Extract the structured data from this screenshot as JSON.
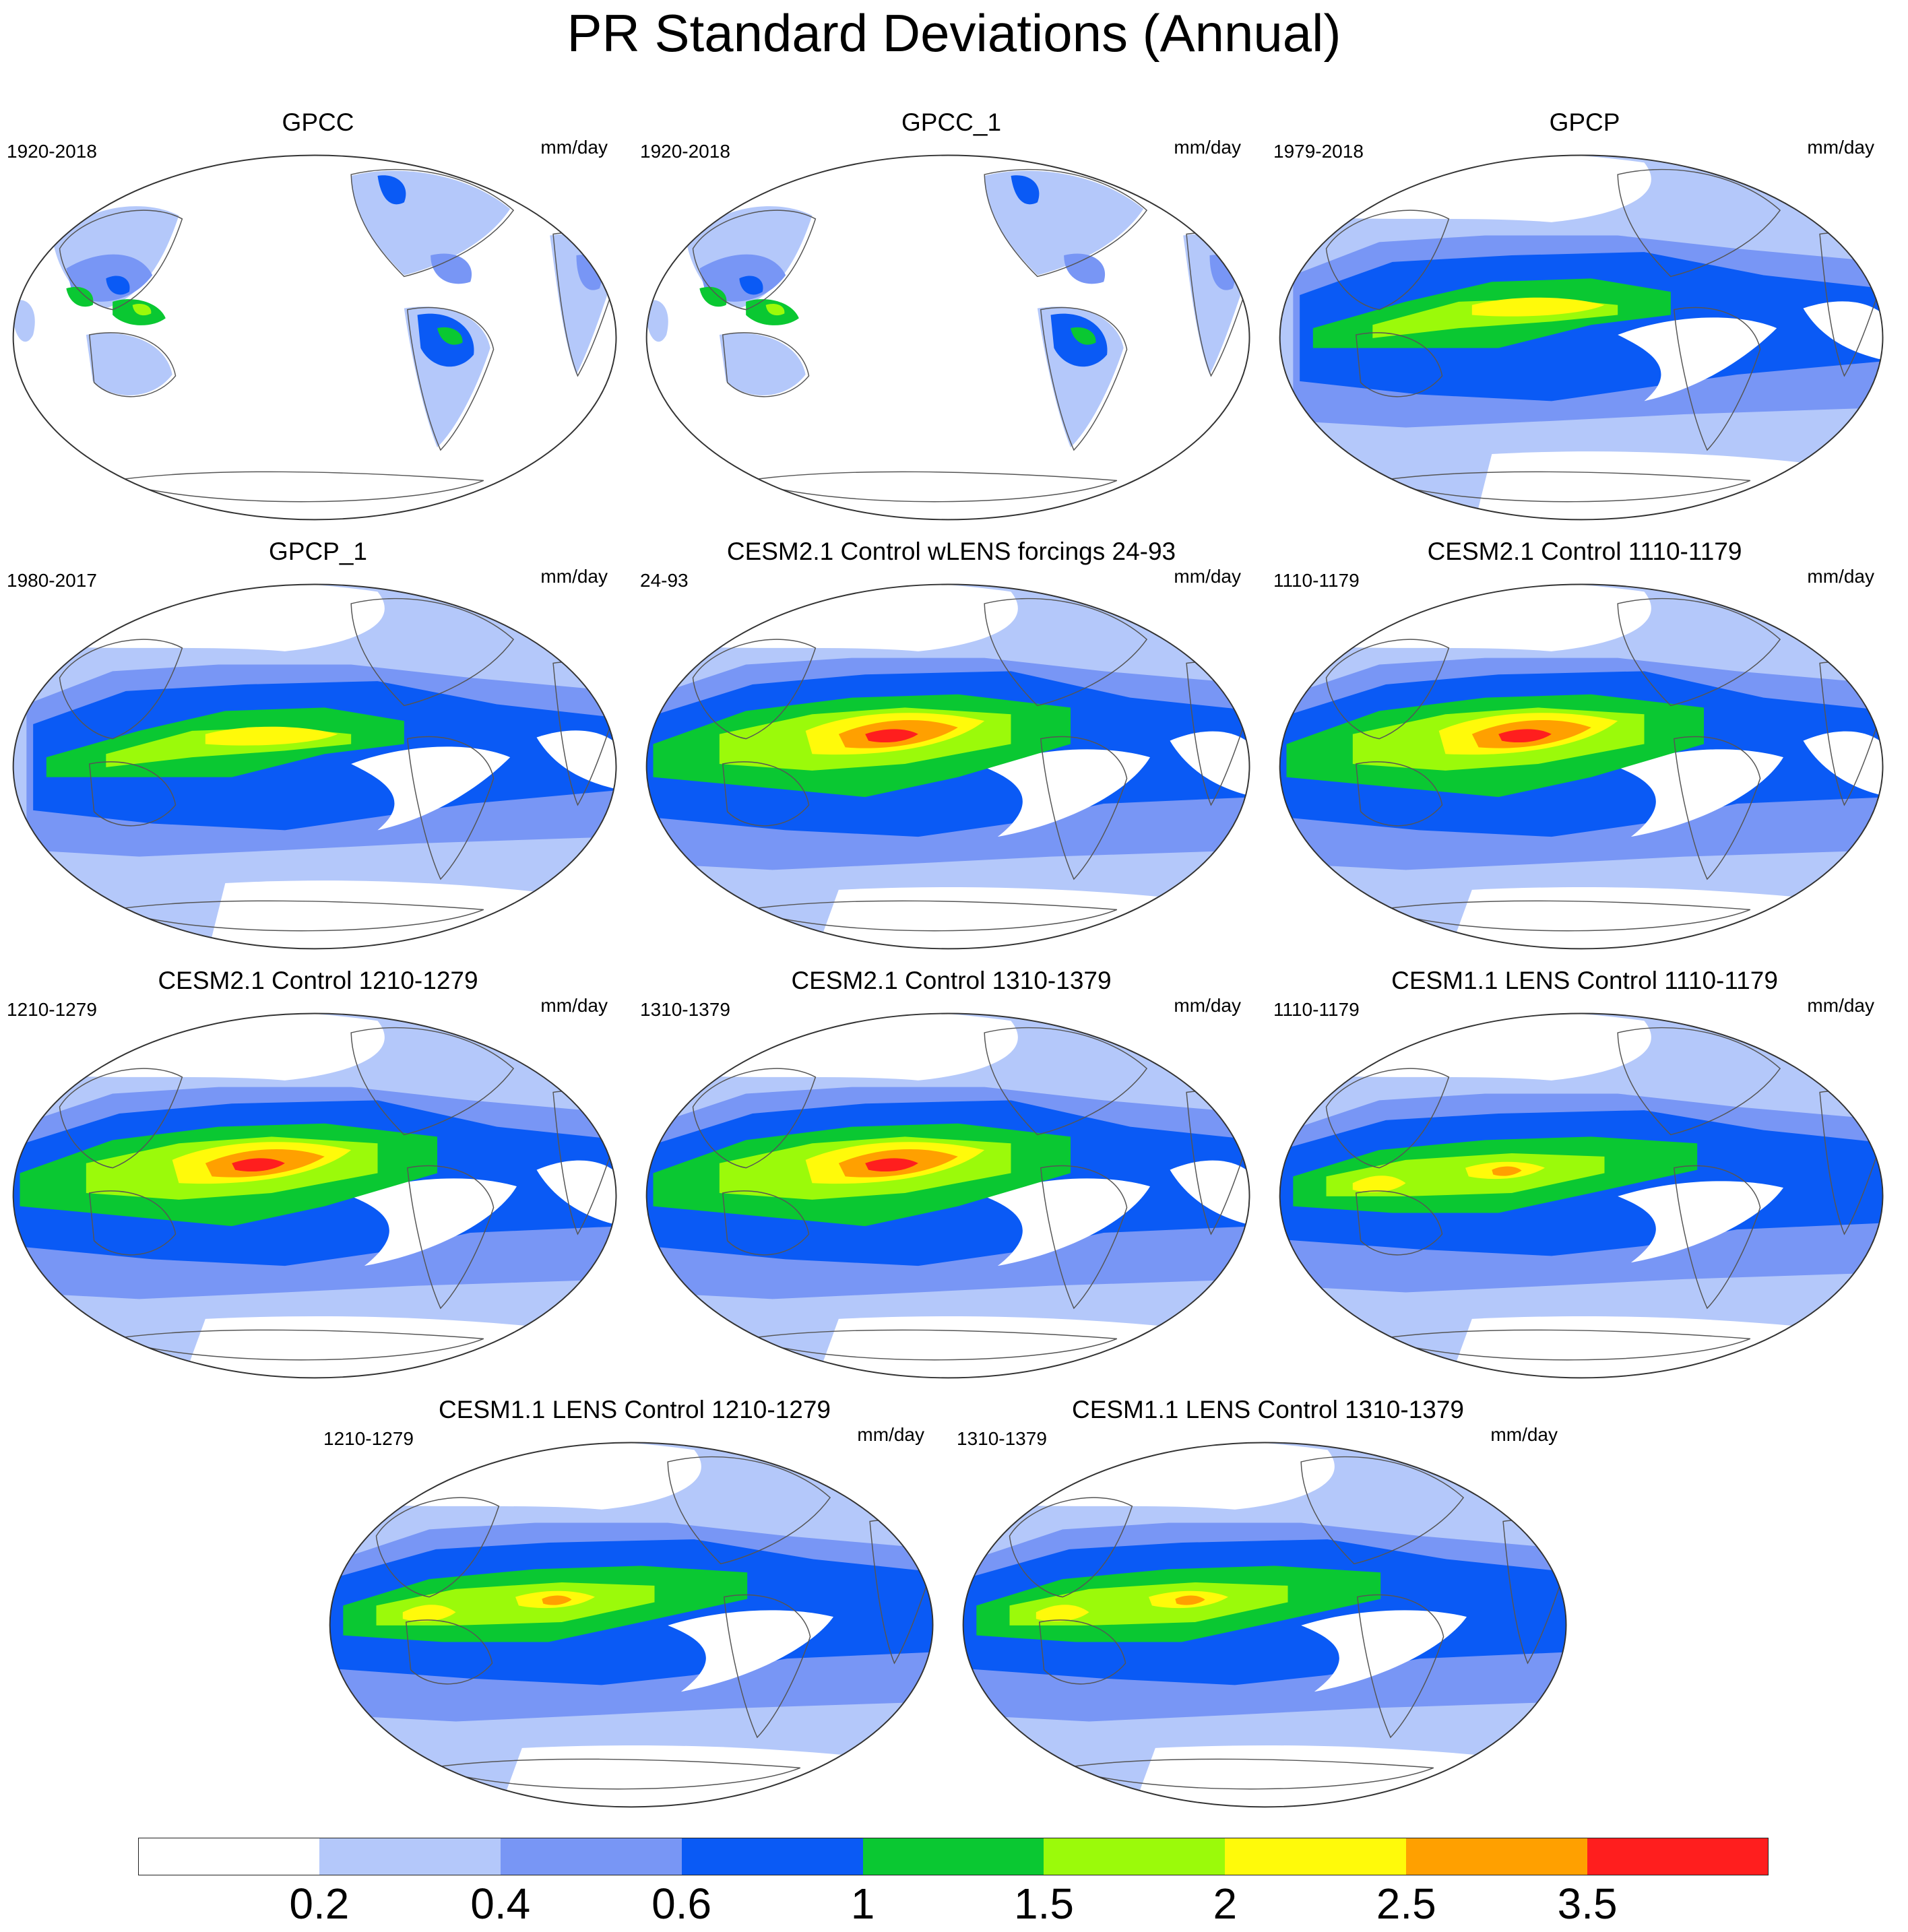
{
  "title": "PR Standard Deviations (Annual)",
  "units": "mm/day",
  "panels": [
    {
      "title": "GPCC",
      "period": "1920-2018",
      "field": "land"
    },
    {
      "title": "GPCC_1",
      "period": "1920-2018",
      "field": "land"
    },
    {
      "title": "GPCP",
      "period": "1979-2018",
      "field": "obs"
    },
    {
      "title": "GPCP_1",
      "period": "1980-2017",
      "field": "obs"
    },
    {
      "title": "CESM2.1 Control wLENS forcings 24-93",
      "period": "24-93",
      "field": "cesm2"
    },
    {
      "title": "CESM2.1 Control 1110-1179",
      "period": "1110-1179",
      "field": "cesm2"
    },
    {
      "title": "CESM2.1 Control 1210-1279",
      "period": "1210-1279",
      "field": "cesm2"
    },
    {
      "title": "CESM2.1 Control 1310-1379",
      "period": "1310-1379",
      "field": "cesm2"
    },
    {
      "title": "CESM1.1 LENS Control 1110-1179",
      "period": "1110-1179",
      "field": "cesm1"
    },
    {
      "title": "CESM1.1 LENS Control 1210-1279",
      "period": "1210-1279",
      "field": "cesm1"
    },
    {
      "title": "CESM1.1 LENS Control 1310-1379",
      "period": "1310-1379",
      "field": "cesm1"
    }
  ],
  "colorbar": {
    "labels": [
      "0.2",
      "0.4",
      "0.6",
      "1",
      "1.5",
      "2",
      "2.5",
      "3.5"
    ],
    "colors": [
      "#ffffff",
      "#b4c8fa",
      "#7896f5",
      "#0a5af5",
      "#0ac832",
      "#9bfa0a",
      "#fffa0a",
      "#ffa000",
      "#ff1e1e"
    ]
  }
}
